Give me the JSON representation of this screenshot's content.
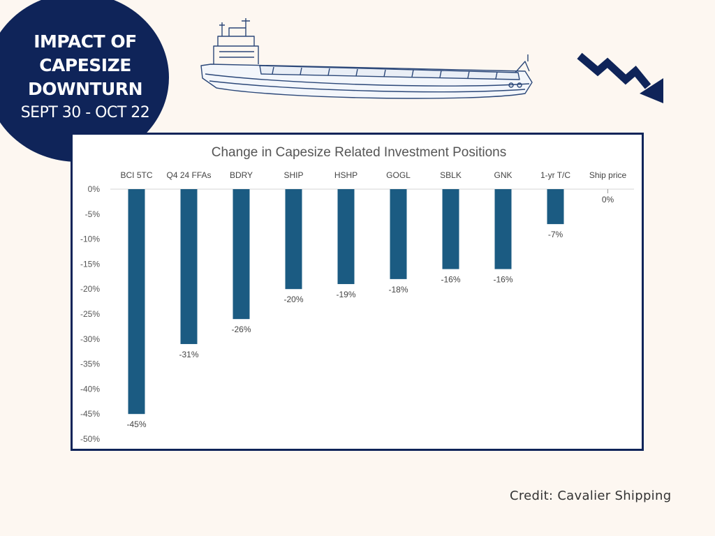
{
  "badge": {
    "headline_lines": [
      "IMPACT OF",
      "CAPESIZE",
      "DOWNTURN"
    ],
    "dates": "SEPT 30 - OCT 22"
  },
  "illustrations": {
    "ship": "bulk-carrier-ship-icon",
    "trend": "downtrend-arrow-icon",
    "trend_color": "#0f2459"
  },
  "chart_data": {
    "type": "bar",
    "title": "Change in Capesize Related Investment Positions",
    "xlabel": "",
    "ylabel": "",
    "categories": [
      "BCI 5TC",
      "Q4 24 FFAs",
      "BDRY",
      "SHIP",
      "HSHP",
      "GOGL",
      "SBLK",
      "GNK",
      "1-yr T/C",
      "Ship price"
    ],
    "values": [
      -45,
      -31,
      -26,
      -20,
      -19,
      -18,
      -16,
      -16,
      -7,
      0
    ],
    "data_labels": [
      "-45%",
      "-31%",
      "-26%",
      "-20%",
      "-19%",
      "-18%",
      "-16%",
      "-16%",
      "-7%",
      "0%"
    ],
    "ylim": [
      -50,
      0
    ],
    "yticks": [
      0,
      -5,
      -10,
      -15,
      -20,
      -25,
      -30,
      -35,
      -40,
      -45,
      -50
    ],
    "ytick_labels": [
      "0%",
      "-5%",
      "-10%",
      "-15%",
      "-20%",
      "-25%",
      "-30%",
      "-35%",
      "-40%",
      "-45%",
      "-50%"
    ],
    "category_axis_position": "top",
    "grid": false,
    "legend": "none",
    "bar_color": "#1b5b82"
  },
  "credit": "Credit: Cavalier Shipping"
}
